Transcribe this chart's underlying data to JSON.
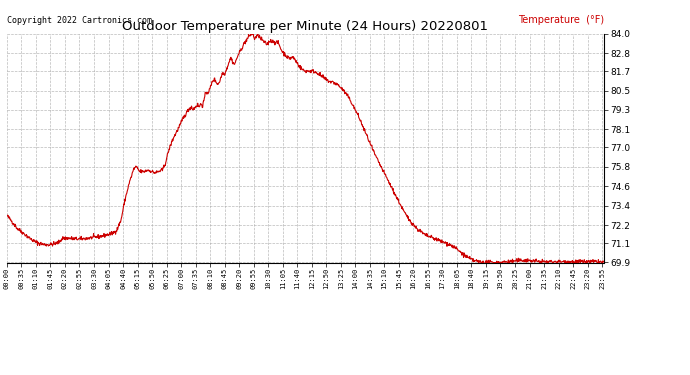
{
  "title": "Outdoor Temperature per Minute (24 Hours) 20220801",
  "copyright_text": "Copyright 2022 Cartronics.com",
  "legend_label": "Temperature  (°F)",
  "line_color": "#cc0000",
  "background_color": "#ffffff",
  "grid_color": "#aaaaaa",
  "text_color": "#000000",
  "legend_color": "#cc0000",
  "ylim": [
    69.9,
    84.0
  ],
  "yticks": [
    69.9,
    71.1,
    72.2,
    73.4,
    74.6,
    75.8,
    77.0,
    78.1,
    79.3,
    80.5,
    81.7,
    82.8,
    84.0
  ],
  "x_tick_labels": [
    "00:00",
    "00:35",
    "01:10",
    "01:45",
    "02:20",
    "02:55",
    "03:30",
    "04:05",
    "04:40",
    "05:15",
    "05:50",
    "06:25",
    "07:00",
    "07:35",
    "08:10",
    "08:45",
    "09:20",
    "09:55",
    "10:30",
    "11:05",
    "11:40",
    "12:15",
    "12:50",
    "13:25",
    "14:00",
    "14:35",
    "15:10",
    "15:45",
    "16:20",
    "16:55",
    "17:30",
    "18:05",
    "18:40",
    "19:15",
    "19:50",
    "20:25",
    "21:00",
    "21:35",
    "22:10",
    "22:45",
    "23:20",
    "23:55"
  ],
  "n_minutes": 1440,
  "temp_data_key_points": [
    [
      0,
      72.8
    ],
    [
      10,
      72.5
    ],
    [
      25,
      72.0
    ],
    [
      45,
      71.6
    ],
    [
      60,
      71.3
    ],
    [
      75,
      71.1
    ],
    [
      90,
      71.0
    ],
    [
      105,
      71.0
    ],
    [
      115,
      71.05
    ],
    [
      125,
      71.15
    ],
    [
      135,
      71.4
    ],
    [
      150,
      71.4
    ],
    [
      165,
      71.35
    ],
    [
      180,
      71.35
    ],
    [
      195,
      71.4
    ],
    [
      210,
      71.45
    ],
    [
      225,
      71.5
    ],
    [
      240,
      71.6
    ],
    [
      255,
      71.7
    ],
    [
      265,
      71.9
    ],
    [
      275,
      72.5
    ],
    [
      285,
      73.8
    ],
    [
      295,
      74.8
    ],
    [
      305,
      75.6
    ],
    [
      310,
      75.8
    ],
    [
      315,
      75.7
    ],
    [
      320,
      75.5
    ],
    [
      325,
      75.5
    ],
    [
      330,
      75.5
    ],
    [
      335,
      75.55
    ],
    [
      340,
      75.6
    ],
    [
      345,
      75.55
    ],
    [
      350,
      75.5
    ],
    [
      355,
      75.45
    ],
    [
      360,
      75.45
    ],
    [
      365,
      75.5
    ],
    [
      370,
      75.55
    ],
    [
      375,
      75.6
    ],
    [
      382,
      76.0
    ],
    [
      390,
      76.8
    ],
    [
      400,
      77.5
    ],
    [
      410,
      78.0
    ],
    [
      418,
      78.4
    ],
    [
      425,
      78.8
    ],
    [
      430,
      79.0
    ],
    [
      435,
      79.2
    ],
    [
      440,
      79.4
    ],
    [
      445,
      79.5
    ],
    [
      448,
      79.35
    ],
    [
      452,
      79.4
    ],
    [
      456,
      79.55
    ],
    [
      460,
      79.6
    ],
    [
      464,
      79.5
    ],
    [
      468,
      79.7
    ],
    [
      472,
      79.55
    ],
    [
      476,
      80.0
    ],
    [
      480,
      80.4
    ],
    [
      484,
      80.35
    ],
    [
      488,
      80.5
    ],
    [
      492,
      80.8
    ],
    [
      496,
      81.1
    ],
    [
      500,
      81.2
    ],
    [
      504,
      81.05
    ],
    [
      508,
      80.9
    ],
    [
      512,
      81.0
    ],
    [
      516,
      81.3
    ],
    [
      520,
      81.6
    ],
    [
      524,
      81.5
    ],
    [
      528,
      81.7
    ],
    [
      532,
      82.0
    ],
    [
      536,
      82.3
    ],
    [
      540,
      82.5
    ],
    [
      544,
      82.3
    ],
    [
      548,
      82.1
    ],
    [
      552,
      82.3
    ],
    [
      556,
      82.6
    ],
    [
      560,
      82.8
    ],
    [
      564,
      83.0
    ],
    [
      568,
      83.2
    ],
    [
      572,
      83.4
    ],
    [
      576,
      83.55
    ],
    [
      580,
      83.7
    ],
    [
      584,
      83.85
    ],
    [
      588,
      83.95
    ],
    [
      591,
      84.0
    ],
    [
      594,
      83.9
    ],
    [
      597,
      83.7
    ],
    [
      601,
      83.8
    ],
    [
      605,
      83.9
    ],
    [
      608,
      83.85
    ],
    [
      612,
      83.7
    ],
    [
      616,
      83.6
    ],
    [
      620,
      83.5
    ],
    [
      624,
      83.4
    ],
    [
      628,
      83.35
    ],
    [
      632,
      83.5
    ],
    [
      636,
      83.6
    ],
    [
      640,
      83.5
    ],
    [
      644,
      83.55
    ],
    [
      648,
      83.4
    ],
    [
      652,
      83.5
    ],
    [
      656,
      83.35
    ],
    [
      660,
      83.1
    ],
    [
      664,
      82.9
    ],
    [
      668,
      82.8
    ],
    [
      672,
      82.7
    ],
    [
      676,
      82.55
    ],
    [
      680,
      82.5
    ],
    [
      684,
      82.5
    ],
    [
      688,
      82.55
    ],
    [
      692,
      82.5
    ],
    [
      696,
      82.35
    ],
    [
      700,
      82.2
    ],
    [
      705,
      82.0
    ],
    [
      710,
      81.85
    ],
    [
      718,
      81.7
    ],
    [
      728,
      81.7
    ],
    [
      738,
      81.7
    ],
    [
      748,
      81.6
    ],
    [
      758,
      81.4
    ],
    [
      768,
      81.2
    ],
    [
      778,
      81.05
    ],
    [
      788,
      81.0
    ],
    [
      798,
      80.85
    ],
    [
      808,
      80.6
    ],
    [
      818,
      80.3
    ],
    [
      828,
      79.9
    ],
    [
      838,
      79.4
    ],
    [
      848,
      78.9
    ],
    [
      858,
      78.3
    ],
    [
      868,
      77.7
    ],
    [
      878,
      77.1
    ],
    [
      888,
      76.5
    ],
    [
      898,
      76.0
    ],
    [
      908,
      75.5
    ],
    [
      918,
      75.0
    ],
    [
      928,
      74.5
    ],
    [
      938,
      74.0
    ],
    [
      948,
      73.5
    ],
    [
      958,
      73.0
    ],
    [
      968,
      72.6
    ],
    [
      978,
      72.3
    ],
    [
      988,
      72.0
    ],
    [
      998,
      71.8
    ],
    [
      1008,
      71.6
    ],
    [
      1018,
      71.5
    ],
    [
      1028,
      71.4
    ],
    [
      1038,
      71.3
    ],
    [
      1048,
      71.2
    ],
    [
      1058,
      71.1
    ],
    [
      1068,
      71.0
    ],
    [
      1078,
      70.85
    ],
    [
      1088,
      70.65
    ],
    [
      1098,
      70.45
    ],
    [
      1108,
      70.25
    ],
    [
      1118,
      70.1
    ],
    [
      1128,
      70.0
    ],
    [
      1138,
      69.95
    ],
    [
      1148,
      69.9
    ],
    [
      1168,
      69.9
    ],
    [
      1188,
      69.9
    ],
    [
      1208,
      69.95
    ],
    [
      1228,
      70.0
    ],
    [
      1248,
      70.05
    ],
    [
      1268,
      70.0
    ],
    [
      1288,
      69.95
    ],
    [
      1308,
      69.95
    ],
    [
      1328,
      69.95
    ],
    [
      1348,
      69.95
    ],
    [
      1368,
      69.95
    ],
    [
      1388,
      69.95
    ],
    [
      1408,
      69.95
    ],
    [
      1428,
      69.95
    ],
    [
      1439,
      69.9
    ]
  ]
}
